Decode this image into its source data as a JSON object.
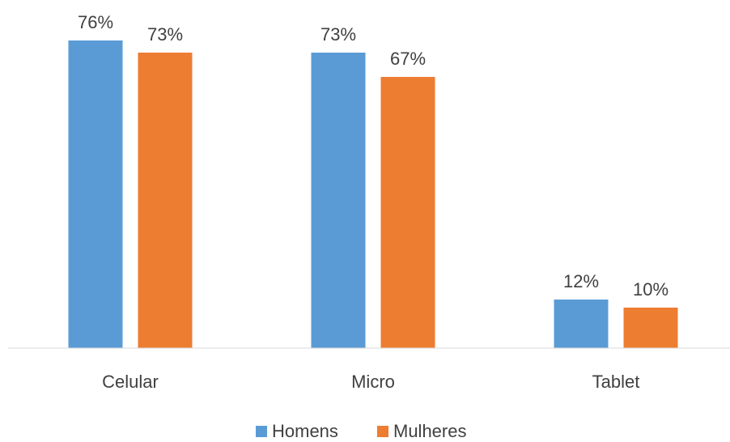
{
  "chart_data": {
    "type": "bar",
    "categories": [
      "Celular",
      "Micro",
      "Tablet"
    ],
    "series": [
      {
        "name": "Homens",
        "color": "#5b9bd5",
        "values": [
          76,
          73,
          12
        ],
        "value_labels": [
          "76%",
          "73%",
          "12%"
        ]
      },
      {
        "name": "Mulheres",
        "color": "#ed7d31",
        "values": [
          73,
          67,
          10
        ],
        "value_labels": [
          "73%",
          "67%",
          "10%"
        ]
      }
    ],
    "legend": "bottom"
  }
}
